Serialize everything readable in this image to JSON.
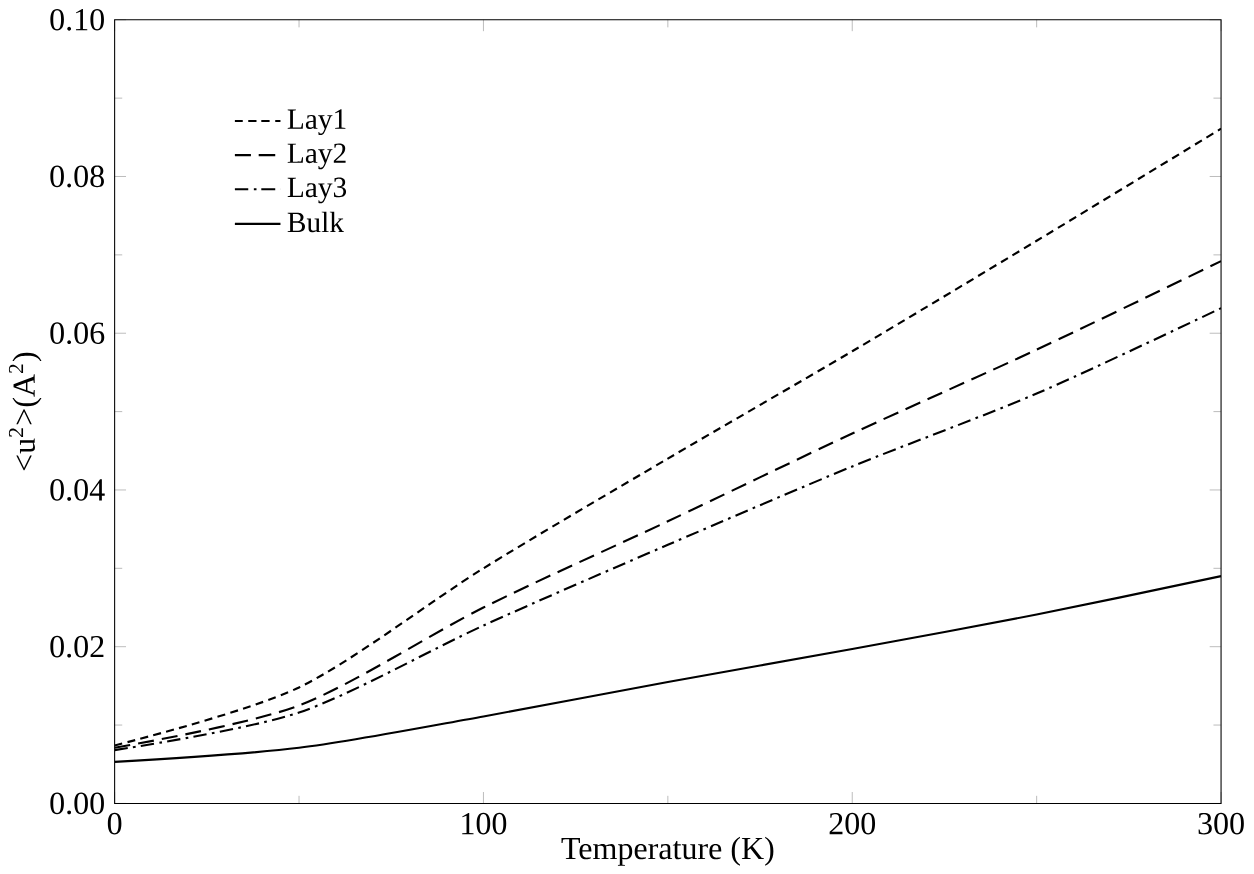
{
  "chart_data": {
    "type": "line",
    "xlabel": "Temperature (K)",
    "ylabel": "<u$^{2}$>(A$^{2}$)",
    "x": [
      0,
      50,
      100,
      150,
      200,
      250,
      300
    ],
    "xlim": [
      0,
      300
    ],
    "xticks": [
      0,
      100,
      200,
      300
    ],
    "ylim": [
      0,
      0.1
    ],
    "yticks": [
      {
        "value": 0,
        "label": "0.00"
      },
      {
        "value": 0.02,
        "label": "0.02"
      },
      {
        "value": 0.04,
        "label": "0.04"
      },
      {
        "value": 0.06,
        "label": "0.06"
      },
      {
        "value": 0.08,
        "label": "0.08"
      },
      {
        "value": 0.1,
        "label": "0.10"
      }
    ],
    "grid": false,
    "legend": "top left",
    "marker": "none",
    "series": [
      {
        "name": "Lay1",
        "color": "#000000",
        "line_style": "dotted",
        "values": [
          0.0074,
          0.0148,
          0.03,
          0.044,
          0.0577,
          0.0718,
          0.0861
        ]
      },
      {
        "name": "Lay2",
        "color": "#000000",
        "line_style": "dashed",
        "values": [
          0.0071,
          0.0125,
          0.025,
          0.036,
          0.0472,
          0.0579,
          0.0692
        ]
      },
      {
        "name": "Lay3",
        "color": "#000000",
        "line_style": "dashdot",
        "values": [
          0.0068,
          0.0116,
          0.0227,
          0.033,
          0.043,
          0.0523,
          0.0632
        ]
      },
      {
        "name": "Bulk",
        "color": "#000000",
        "line_style": "solid",
        "values": [
          0.0053,
          0.0071,
          0.0111,
          0.0155,
          0.0197,
          0.0241,
          0.029
        ]
      }
    ]
  }
}
